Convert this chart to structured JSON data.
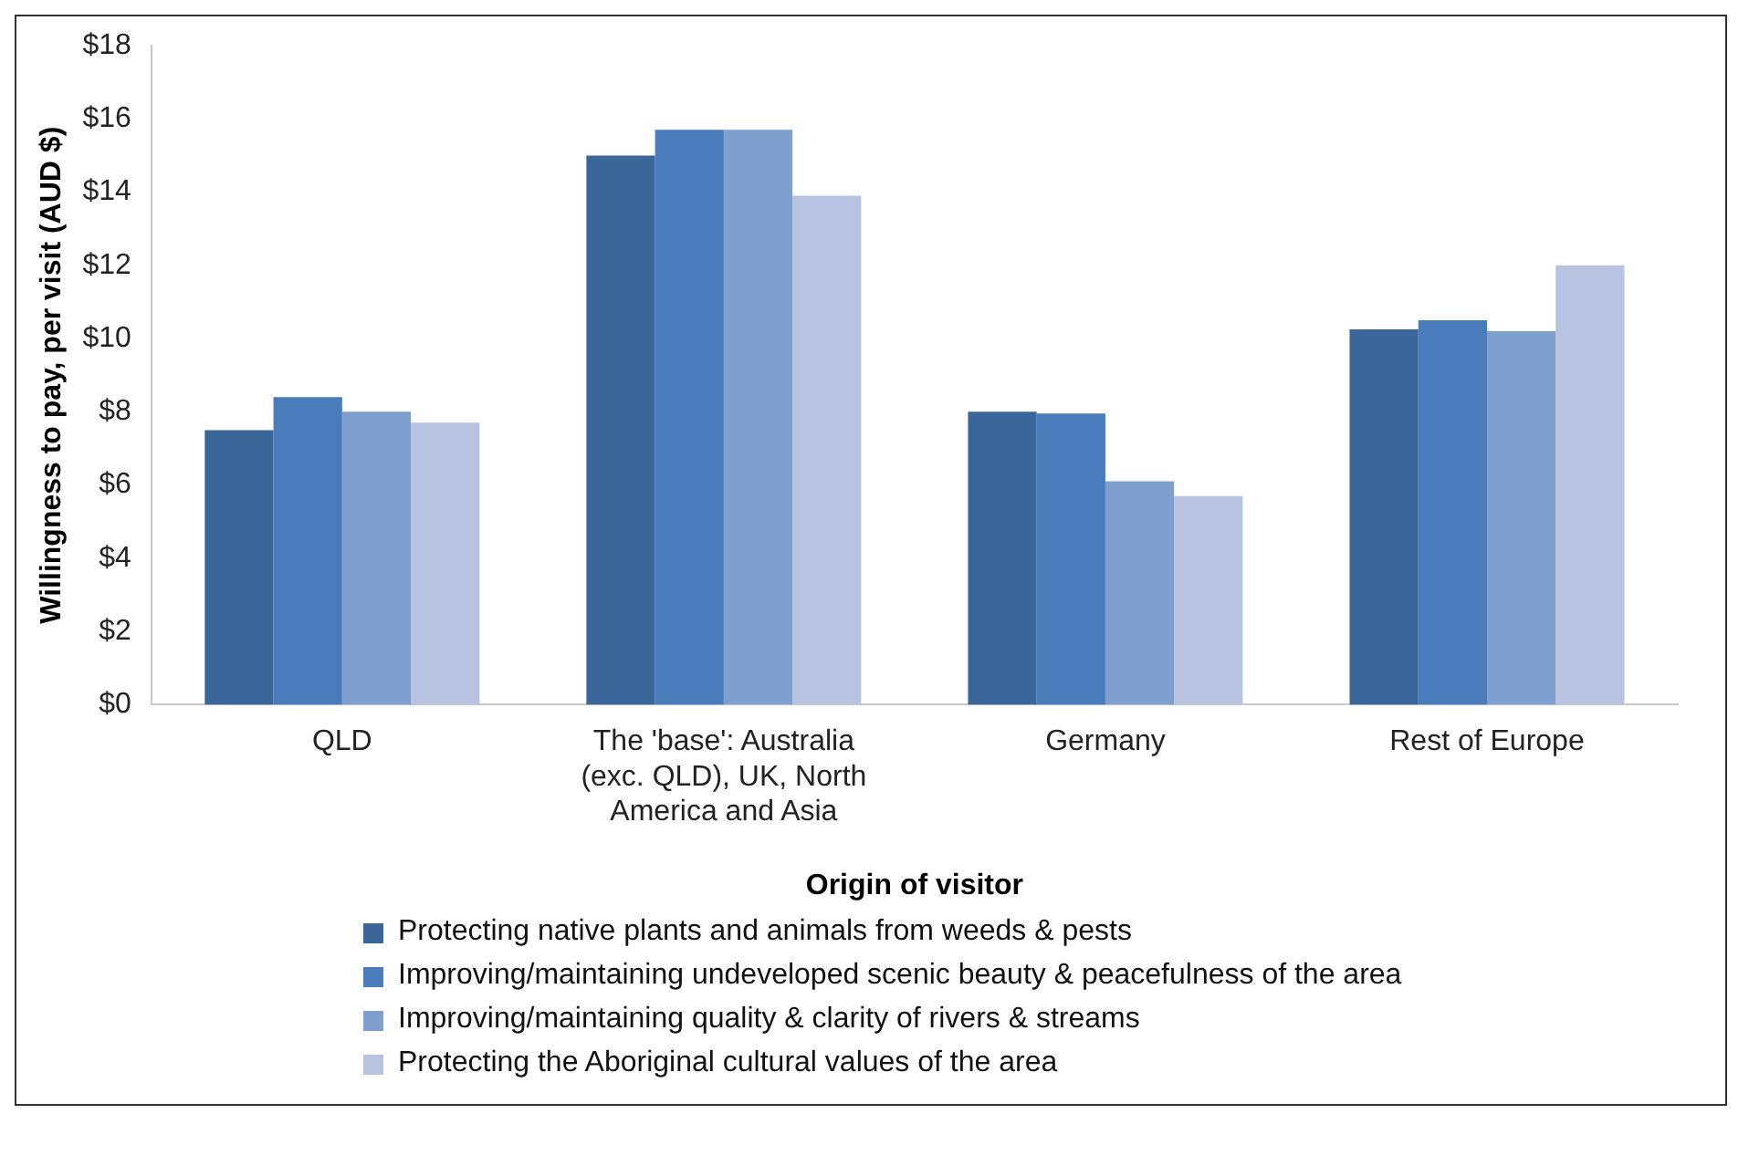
{
  "chart_data": {
    "type": "bar",
    "xlabel": "Origin of visitor",
    "ylabel": "Willingness to pay, per visit (AUD $)",
    "categories": [
      "QLD",
      "The 'base': Australia (exc. QLD), UK, North America and Asia",
      "Germany",
      "Rest of Europe"
    ],
    "series": [
      {
        "name": "Protecting native plants and animals from weeds & pests",
        "color": "#3a6699",
        "values": [
          7.5,
          15.0,
          8.0,
          10.25
        ]
      },
      {
        "name": "Improving/maintaining undeveloped scenic beauty & peacefulness of the area",
        "color": "#4a7bbb",
        "values": [
          8.4,
          15.7,
          7.95,
          10.5
        ]
      },
      {
        "name": "Improving/maintaining quality & clarity of rivers & streams",
        "color": "#7f9fcf",
        "values": [
          8.0,
          15.7,
          6.1,
          10.2
        ]
      },
      {
        "name": "Protecting the Aboriginal cultural values of the area",
        "color": "#b7c3e0",
        "values": [
          7.7,
          13.9,
          5.7,
          12.0
        ]
      }
    ],
    "ylim": [
      0,
      18
    ],
    "yticks": [
      {
        "value": 0,
        "label": "$0"
      },
      {
        "value": 2,
        "label": "$2"
      },
      {
        "value": 4,
        "label": "$4"
      },
      {
        "value": 6,
        "label": "$6"
      },
      {
        "value": 8,
        "label": "$8"
      },
      {
        "value": 10,
        "label": "$10"
      },
      {
        "value": 12,
        "label": "$12"
      },
      {
        "value": 14,
        "label": "$14"
      },
      {
        "value": 16,
        "label": "$16"
      },
      {
        "value": 18,
        "label": "$18"
      }
    ],
    "grid": false,
    "legend": "bottom"
  }
}
